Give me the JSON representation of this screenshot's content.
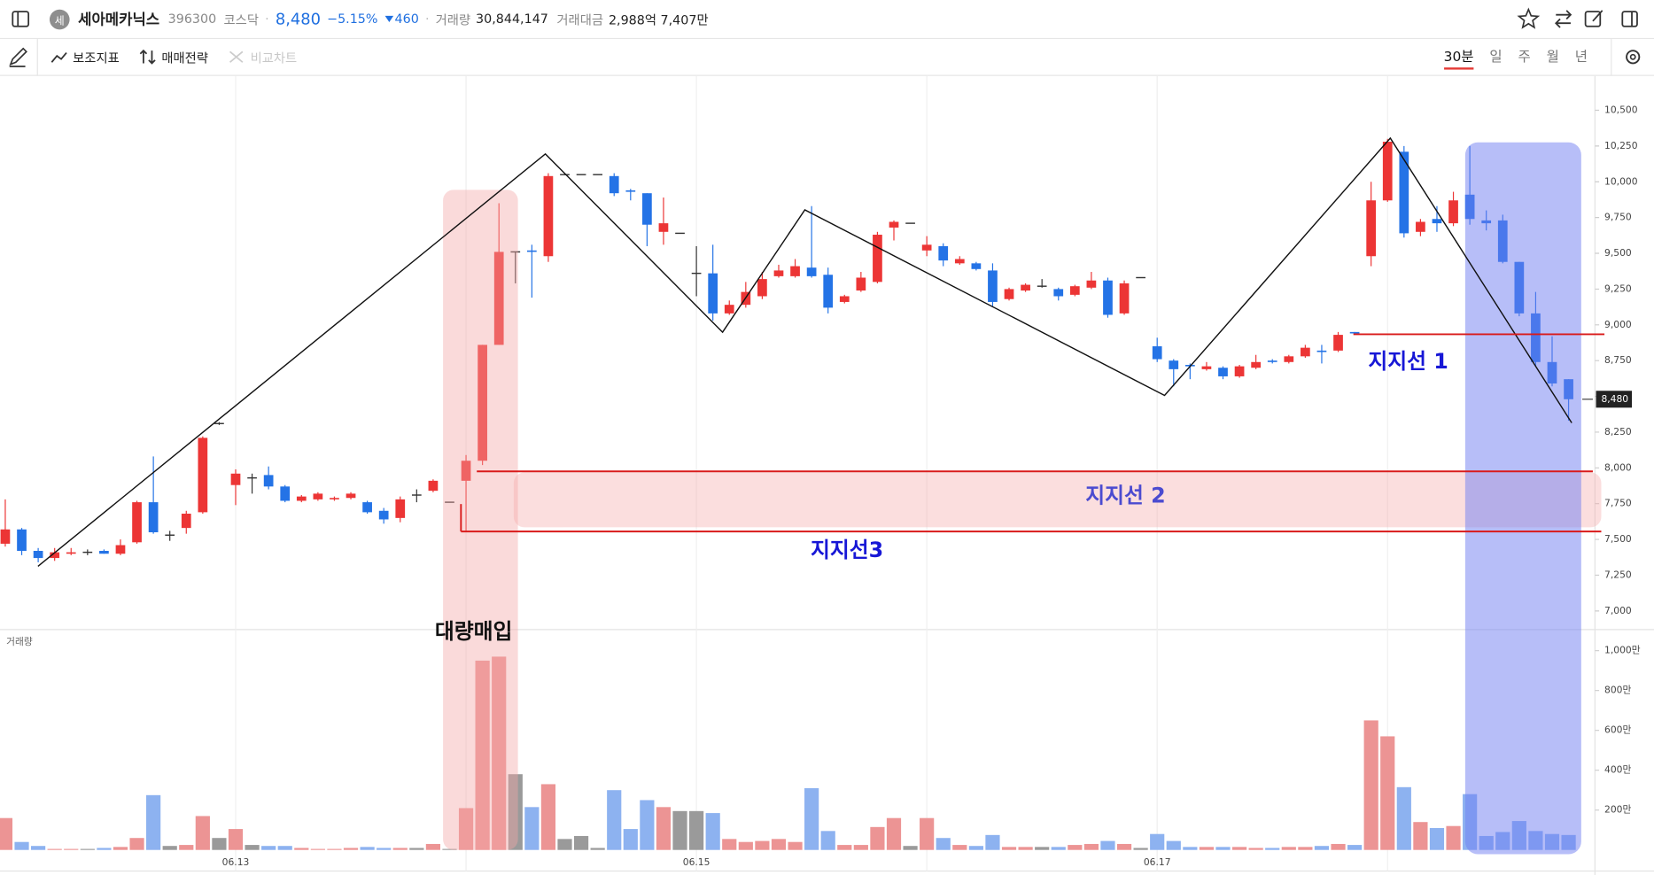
{
  "header": {
    "avatar": "세",
    "name": "세아메카닉스",
    "code": "396300",
    "market": "코스닥",
    "price": "8,480",
    "change_rate": "−5.15%",
    "change": "460",
    "volume_label": "거래량",
    "volume": "30,844,147",
    "amount_label": "거래대금",
    "amount": "2,988억 7,407만"
  },
  "toolbar": {
    "indicators": "보조지표",
    "strategy": "매매전략",
    "compare": "비교차트",
    "periods": [
      "30분",
      "일",
      "주",
      "월",
      "년"
    ]
  },
  "chart_data": {
    "type": "candlestick",
    "categories": [
      null,
      null,
      null,
      null,
      null,
      null,
      null,
      null,
      null,
      null,
      null,
      null,
      null,
      null,
      "06.13",
      null,
      null,
      null,
      null,
      null,
      null,
      null,
      null,
      null,
      null,
      null,
      null,
      null,
      null,
      null,
      null,
      null,
      null,
      null,
      null,
      null,
      null,
      null,
      null,
      null,
      null,
      null,
      "06.15",
      null,
      null,
      null,
      null,
      null,
      null,
      null,
      null,
      null,
      null,
      null,
      null,
      null,
      null,
      null,
      null,
      null,
      null,
      null,
      null,
      null,
      null,
      null,
      null,
      null,
      null,
      null,
      "06.17",
      null,
      null,
      null,
      null,
      null,
      null,
      null,
      null,
      null,
      null,
      null,
      null,
      null,
      null,
      null,
      null,
      null,
      null,
      null,
      null,
      null,
      null,
      null,
      null,
      null
    ],
    "open": [
      7470,
      7570,
      7420,
      7370,
      7400,
      7410,
      7420,
      7400,
      7480,
      7760,
      7530,
      7580,
      7690,
      8310,
      7880,
      7930,
      7950,
      7870,
      7770,
      7780,
      7780,
      7790,
      7760,
      7700,
      7650,
      7810,
      7840,
      7760,
      7910,
      8050,
      8860,
      9510,
      9520,
      9480,
      10050,
      10050,
      10050,
      10040,
      9940,
      9920,
      9650,
      9640,
      9360,
      9360,
      9080,
      9140,
      9200,
      9340,
      9340,
      9400,
      9350,
      9160,
      9240,
      9300,
      9680,
      9710,
      9520,
      9550,
      9430,
      9430,
      9380,
      9180,
      9240,
      9270,
      9250,
      9210,
      9260,
      9310,
      9080,
      9330,
      8850,
      8750,
      8720,
      8690,
      8700,
      8640,
      8700,
      8750,
      8740,
      8780,
      8820,
      8820,
      8950,
      9480,
      9870,
      10210,
      9650,
      9740,
      9710,
      9910,
      9730,
      9730,
      9440,
      9080,
      8740,
      8620
    ],
    "high": [
      7780,
      7580,
      7440,
      7440,
      7440,
      7430,
      7430,
      7500,
      7770,
      8080,
      7560,
      7700,
      8220,
      8320,
      7990,
      7960,
      8010,
      7880,
      7810,
      7830,
      7800,
      7830,
      7770,
      7720,
      7800,
      7850,
      7920,
      7760,
      8090,
      8860,
      9850,
      9510,
      9560,
      10060,
      10050,
      10050,
      10050,
      10060,
      9950,
      9920,
      9890,
      9640,
      9550,
      9560,
      9170,
      9300,
      9370,
      9420,
      9460,
      9830,
      9400,
      9210,
      9370,
      9650,
      9730,
      9710,
      9620,
      9570,
      9480,
      9440,
      9430,
      9260,
      9290,
      9320,
      9260,
      9280,
      9370,
      9330,
      9310,
      9330,
      8910,
      8760,
      8730,
      8740,
      8710,
      8720,
      8790,
      8760,
      8790,
      8860,
      8860,
      8950,
      8950,
      10000,
      10300,
      10250,
      9740,
      9830,
      9930,
      10250,
      9800,
      9770,
      9440,
      9230,
      8920,
      8620
    ],
    "low": [
      7450,
      7390,
      7340,
      7350,
      7390,
      7390,
      7400,
      7390,
      7470,
      7540,
      7490,
      7540,
      7680,
      8300,
      7740,
      7820,
      7850,
      7760,
      7760,
      7770,
      7770,
      7780,
      7680,
      7610,
      7620,
      7760,
      7830,
      7760,
      7560,
      8020,
      8860,
      9290,
      9190,
      9440,
      10050,
      10050,
      10050,
      9900,
      9870,
      9550,
      9560,
      9640,
      9200,
      9030,
      9070,
      9120,
      9180,
      9330,
      9330,
      9330,
      9080,
      9150,
      9230,
      9290,
      9590,
      9710,
      9480,
      9410,
      9420,
      9380,
      9130,
      9170,
      9230,
      9260,
      9170,
      9200,
      9250,
      9050,
      9070,
      9330,
      8740,
      8570,
      8620,
      8680,
      8620,
      8630,
      8690,
      8730,
      8730,
      8770,
      8730,
      8810,
      8930,
      9410,
      9860,
      9610,
      9620,
      9650,
      9690,
      9700,
      9660,
      9430,
      9060,
      8710,
      8570,
      8330
    ],
    "close": [
      7570,
      7420,
      7370,
      7410,
      7410,
      7410,
      7400,
      7460,
      7760,
      7550,
      7530,
      7680,
      8210,
      8310,
      7960,
      7930,
      7870,
      7770,
      7800,
      7820,
      7790,
      7820,
      7690,
      7640,
      7780,
      7810,
      7910,
      7760,
      8050,
      8860,
      9510,
      9510,
      9510,
      10040,
      10050,
      10050,
      10050,
      9920,
      9930,
      9700,
      9710,
      9640,
      9360,
      9080,
      9140,
      9230,
      9320,
      9380,
      9410,
      9340,
      9120,
      9200,
      9330,
      9630,
      9720,
      9710,
      9560,
      9450,
      9460,
      9390,
      9160,
      9250,
      9280,
      9270,
      9200,
      9270,
      9310,
      9070,
      9290,
      9330,
      8760,
      8690,
      8710,
      8710,
      8640,
      8710,
      8740,
      8740,
      8780,
      8840,
      8810,
      8930,
      8940,
      9870,
      10280,
      9640,
      9720,
      9710,
      9870,
      9740,
      9710,
      9440,
      9080,
      8740,
      8590,
      8480
    ],
    "volume": [
      160,
      40,
      20,
      5,
      5,
      5,
      10,
      15,
      60,
      275,
      20,
      25,
      170,
      60,
      105,
      25,
      20,
      20,
      10,
      5,
      5,
      10,
      15,
      10,
      10,
      10,
      30,
      5,
      210,
      950,
      970,
      380,
      215,
      330,
      55,
      70,
      10,
      300,
      105,
      250,
      215,
      195,
      195,
      185,
      55,
      40,
      45,
      55,
      40,
      310,
      95,
      25,
      25,
      115,
      160,
      20,
      160,
      60,
      25,
      20,
      75,
      15,
      15,
      15,
      15,
      25,
      30,
      45,
      30,
      10,
      80,
      45,
      15,
      15,
      15,
      15,
      10,
      10,
      15,
      15,
      20,
      30,
      25,
      650,
      570,
      315,
      140,
      110,
      120,
      280,
      70,
      90,
      145,
      95,
      80,
      75
    ],
    "ylim": [
      6870,
      10740
    ],
    "yticks": [
      {
        "value": 7000,
        "label": "7,000"
      },
      {
        "value": 7250,
        "label": "7,250"
      },
      {
        "value": 7500,
        "label": "7,500"
      },
      {
        "value": 7750,
        "label": "7,750"
      },
      {
        "value": 8000,
        "label": "8,000"
      },
      {
        "value": 8250,
        "label": "8,250"
      },
      {
        "value": 8500,
        "label": "8,500"
      },
      {
        "value": 8750,
        "label": "8,750"
      },
      {
        "value": 9000,
        "label": "9,000"
      },
      {
        "value": 9250,
        "label": "9,250"
      },
      {
        "value": 9500,
        "label": "9,500"
      },
      {
        "value": 9750,
        "label": "9,750"
      },
      {
        "value": 10000,
        "label": "10,000"
      },
      {
        "value": 10250,
        "label": "10,250"
      },
      {
        "value": 10500,
        "label": "10,500"
      }
    ],
    "volume_label": "거래량",
    "y2lim": [
      0,
      1090
    ],
    "y2ticks": [
      {
        "value": 200,
        "label": "200만"
      },
      {
        "value": 400,
        "label": "400만"
      },
      {
        "value": 600,
        "label": "600만"
      },
      {
        "value": 800,
        "label": "800만"
      },
      {
        "value": 1000,
        "label": "1,000만"
      }
    ],
    "last_price": {
      "value": 8480,
      "label": "8,480"
    },
    "up_color": "#ec3535",
    "down_color": "#2473e6",
    "flat_color": "#333333",
    "up_volume_color": "#ec9494",
    "down_volume_color": "#8db2f0",
    "flat_volume_color": "#9a9a9a",
    "annotations": [
      "대량매입",
      "지지선 1",
      "지지선 2",
      "지지선3"
    ]
  }
}
